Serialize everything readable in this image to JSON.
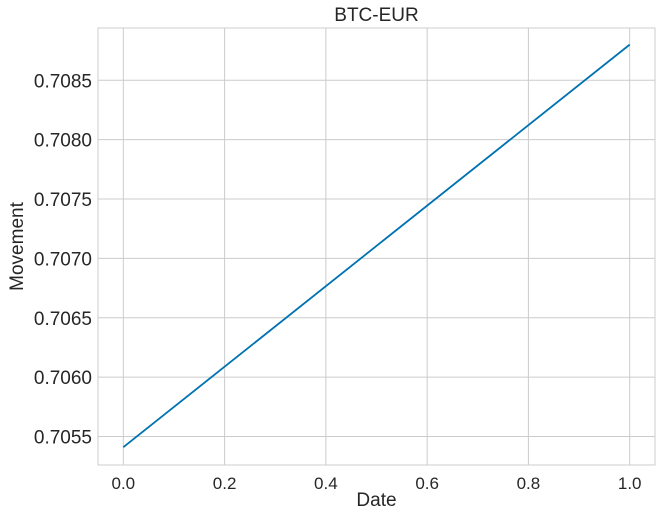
{
  "chart_data": {
    "type": "line",
    "title": "BTC-EUR",
    "xlabel": "Date",
    "ylabel": "Movement",
    "xlim": [
      -0.05,
      1.05
    ],
    "ylim": [
      0.70526,
      0.70894
    ],
    "x_ticks": [
      0.0,
      0.2,
      0.4,
      0.6,
      0.8,
      1.0
    ],
    "x_tick_labels": [
      "0.0",
      "0.2",
      "0.4",
      "0.6",
      "0.8",
      "1.0"
    ],
    "y_ticks": [
      0.7055,
      0.706,
      0.7065,
      0.707,
      0.7075,
      0.708,
      0.7085
    ],
    "y_tick_labels": [
      "0.7055",
      "0.7060",
      "0.7065",
      "0.7070",
      "0.7075",
      "0.7080",
      "0.7085"
    ],
    "grid": true,
    "series": [
      {
        "x": [
          0.0,
          1.0
        ],
        "values": [
          0.70541,
          0.7088
        ],
        "color": "#0072b2"
      }
    ]
  }
}
